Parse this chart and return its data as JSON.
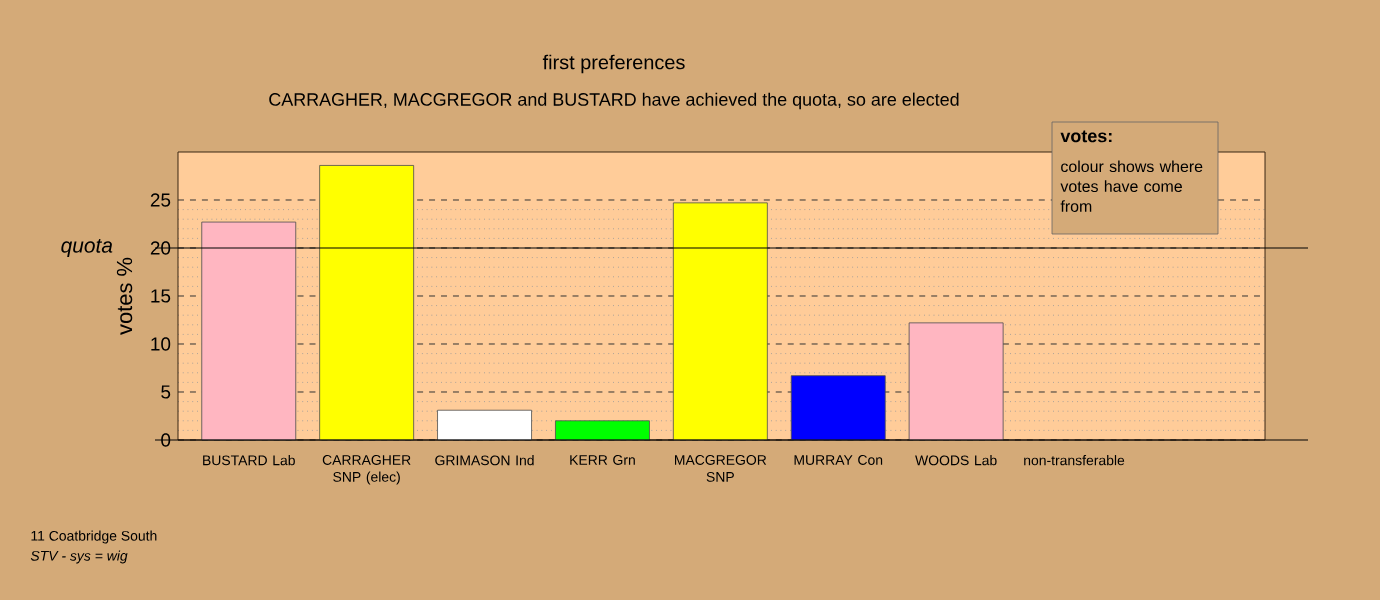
{
  "chart_data": {
    "type": "bar",
    "title": "first preferences",
    "subtitle": "CARRAGHER, MACGREGOR and BUSTARD have achieved the quota, so are elected",
    "categories": [
      "BUSTARD Lab",
      "CARRAGHER SNP (elec)",
      "GRIMASON Ind",
      "KERR Grn",
      "MACGREGOR SNP",
      "MURRAY Con",
      "WOODS Lab",
      "non-transferable"
    ],
    "values": [
      22.7,
      28.6,
      3.1,
      2.0,
      24.7,
      6.7,
      12.2,
      null
    ],
    "colors": [
      "#ffb6c1",
      "#ffff00",
      "#ffffff",
      "#00ff00",
      "#ffff00",
      "#0000ff",
      "#ffb6c1",
      null
    ],
    "ylabel": "votes %",
    "ylim": [
      0,
      30
    ],
    "yticks": [
      0,
      5,
      10,
      15,
      20,
      25
    ],
    "grid": "y",
    "ref_lines": [
      {
        "axis": "y",
        "value": 20,
        "label": "quota"
      }
    ],
    "annotations": [
      "votes:",
      "colour shows where votes have come from",
      "11 Coatbridge South",
      "STV - sys = wig"
    ]
  }
}
